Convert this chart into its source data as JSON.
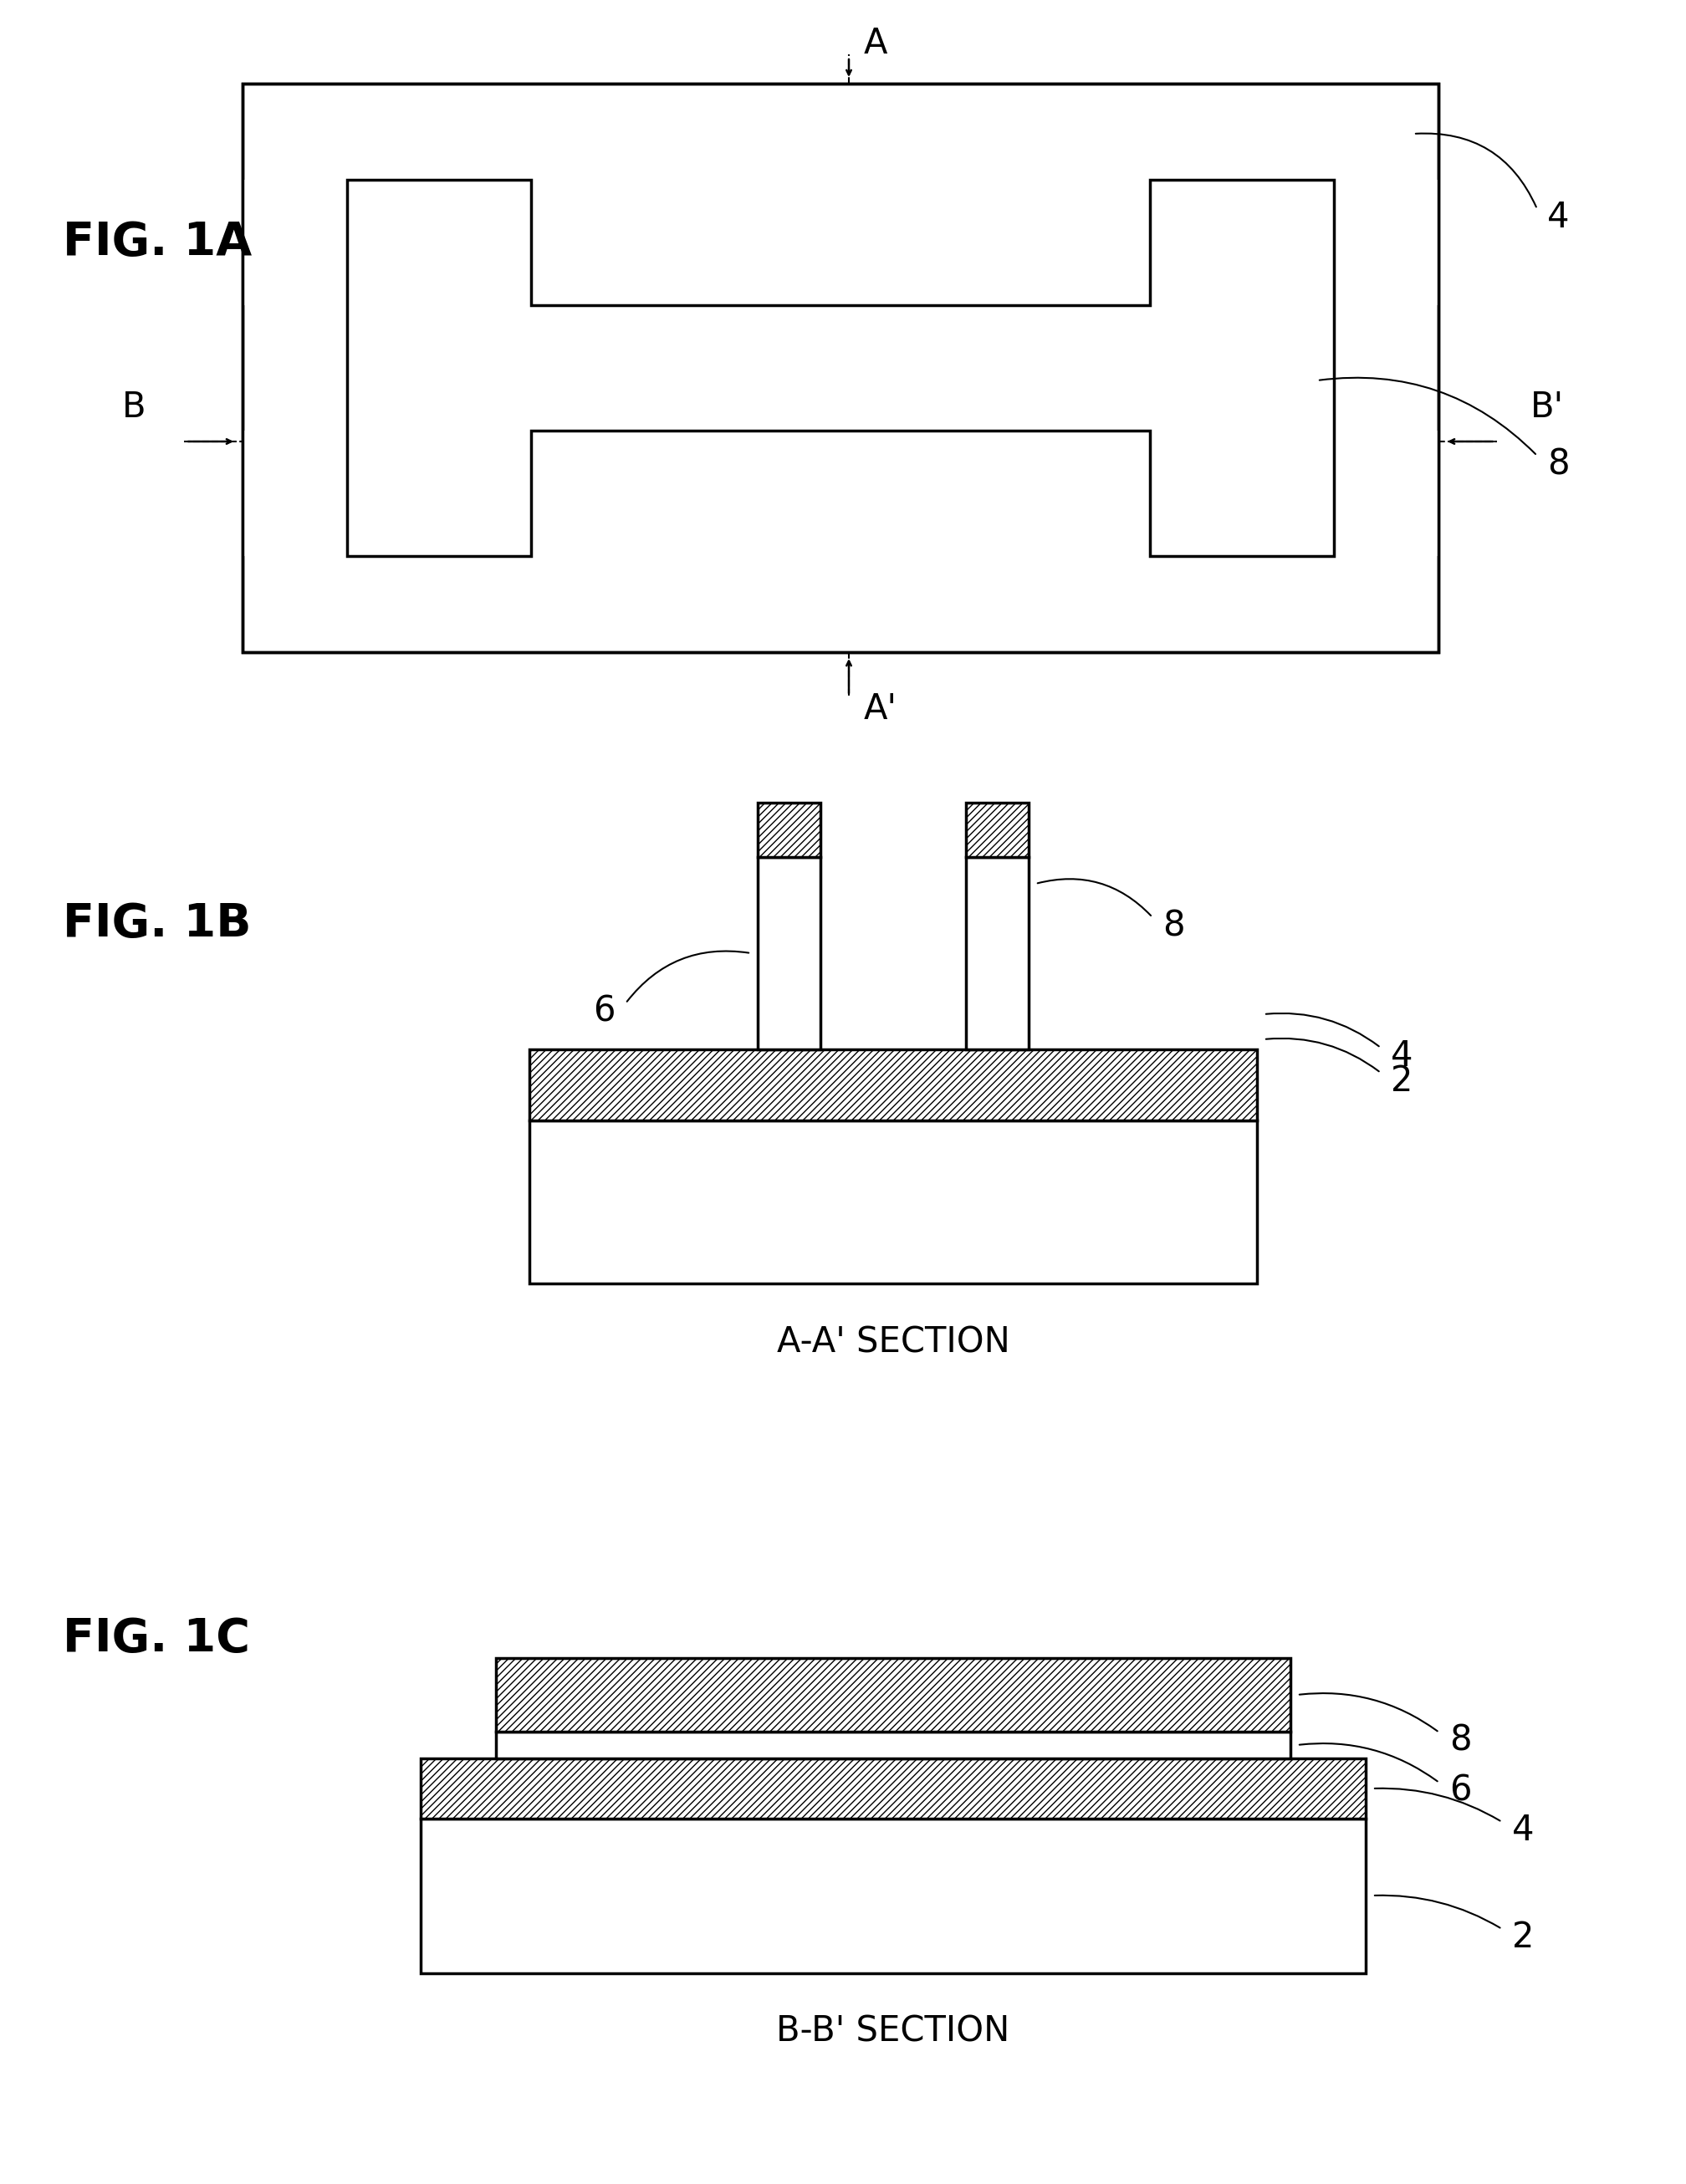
{
  "bg_color": "#ffffff",
  "line_color": "#000000",
  "fig_width": 20.16,
  "fig_height": 26.12,
  "fig1a_label": "FIG. 1A",
  "fig1b_label": "FIG. 1B",
  "fig1c_label": "FIG. 1C",
  "section_aa_label": "A-A' SECTION",
  "section_bb_label": "B-B' SECTION",
  "label_2": "2",
  "label_4": "4",
  "label_6": "6",
  "label_8": "8"
}
